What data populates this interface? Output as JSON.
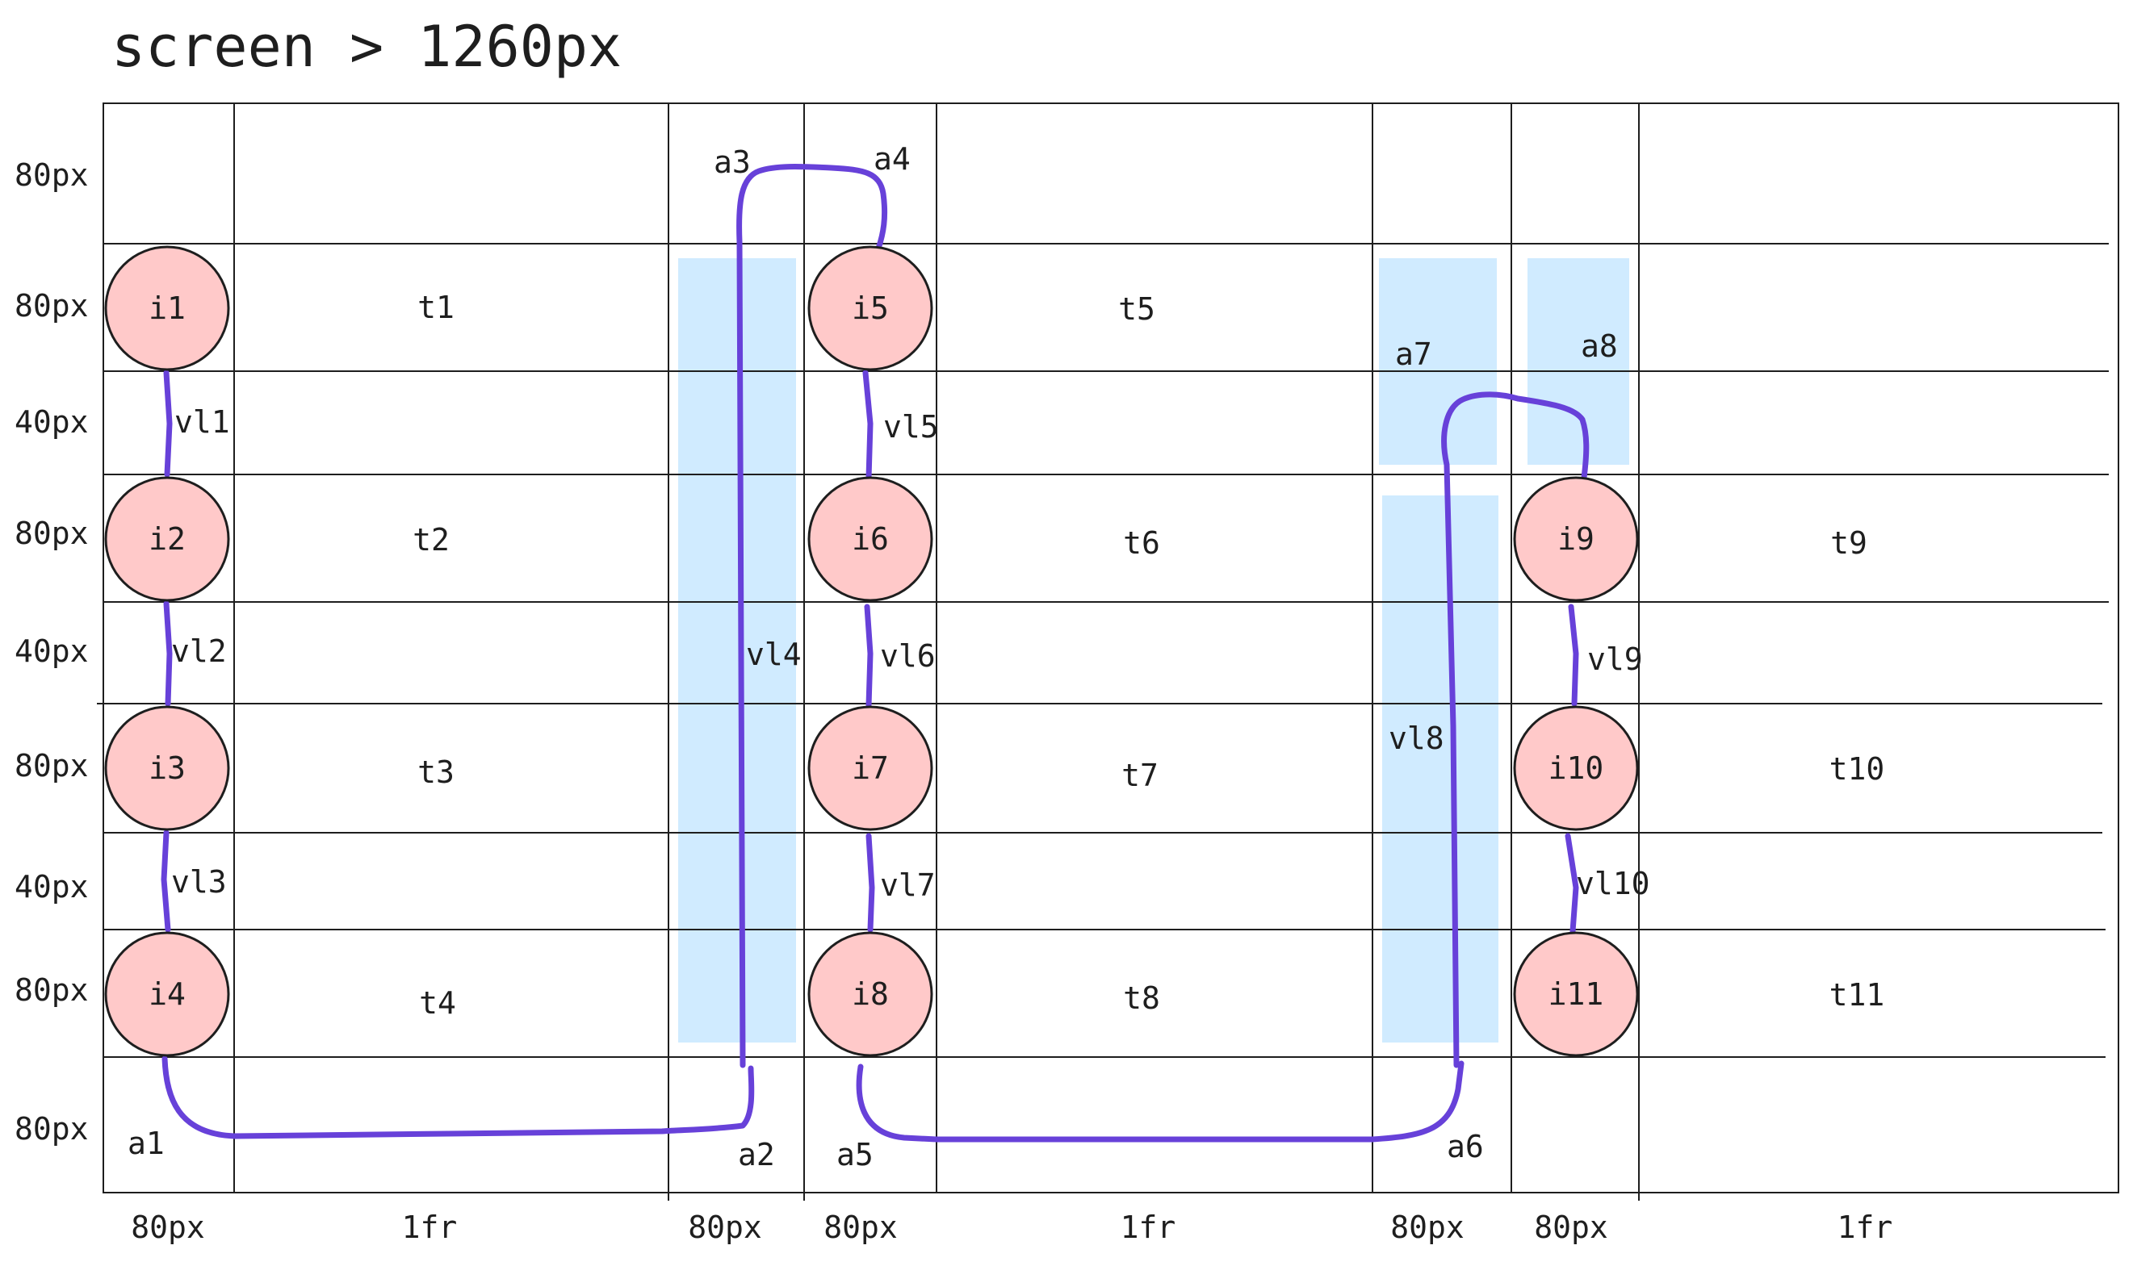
{
  "title": "screen > 1260px",
  "row_labels": [
    "80px",
    "80px",
    "40px",
    "80px",
    "40px",
    "80px",
    "40px",
    "80px",
    "80px"
  ],
  "col_labels": [
    "80px",
    "1fr",
    "80px",
    "80px",
    "1fr",
    "80px",
    "80px",
    "1fr"
  ],
  "nodes": [
    "i1",
    "i2",
    "i3",
    "i4",
    "i5",
    "i6",
    "i7",
    "i8",
    "i9",
    "i10",
    "i11"
  ],
  "texts": [
    "t1",
    "t2",
    "t3",
    "t4",
    "t5",
    "t6",
    "t7",
    "t8",
    "t9",
    "t10",
    "t11"
  ],
  "vlines": [
    "vl1",
    "vl2",
    "vl3",
    "vl4",
    "vl5",
    "vl6",
    "vl7",
    "vl8",
    "vl9",
    "vl10"
  ],
  "anchors": [
    "a1",
    "a2",
    "a3",
    "a4",
    "a5",
    "a6",
    "a7",
    "a8"
  ],
  "colors": {
    "grid": "#1e1e1e",
    "node_fill": "#ffc9c9",
    "node_stroke": "#1e1e1e",
    "connector": "#6741d9",
    "highlight": "#d0ebff"
  }
}
